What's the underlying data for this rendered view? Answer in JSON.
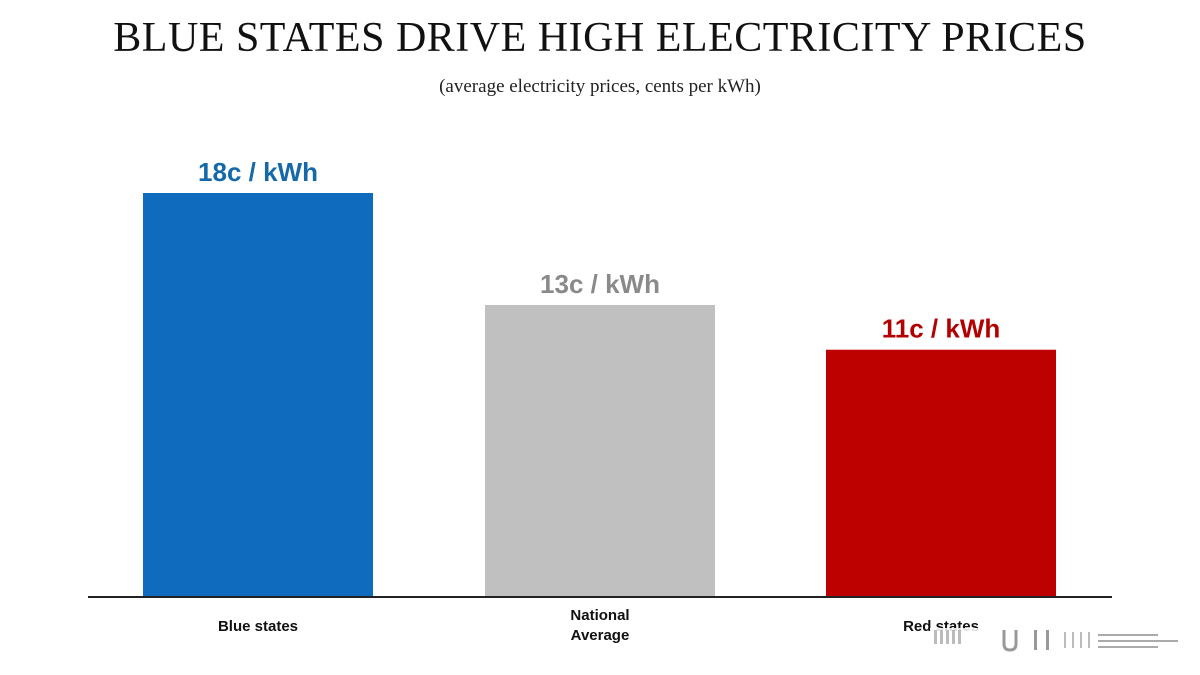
{
  "title": "BLUE STATES DRIVE HIGH ELECTRICITY PRICES",
  "subtitle": "(average electricity prices, cents per kWh)",
  "watermark": "Red states watermark",
  "chart_data": {
    "type": "bar",
    "categories": [
      "Blue states",
      "National Average",
      "Red states"
    ],
    "category_lines": [
      [
        "Blue states"
      ],
      [
        "National",
        "Average"
      ],
      [
        "Red states"
      ]
    ],
    "values": [
      18,
      13,
      11
    ],
    "data_labels": [
      "18c  / kWh",
      "13c  / kWh",
      "11c  / kWh"
    ],
    "colors": [
      "#0f6bbd",
      "#c0c0c0",
      "#bd0000"
    ],
    "label_colors": [
      "#1569a8",
      "#8a8a8a",
      "#b30000"
    ],
    "ylim": [
      0,
      18
    ],
    "grid": false,
    "xlabel": "",
    "ylabel": ""
  }
}
